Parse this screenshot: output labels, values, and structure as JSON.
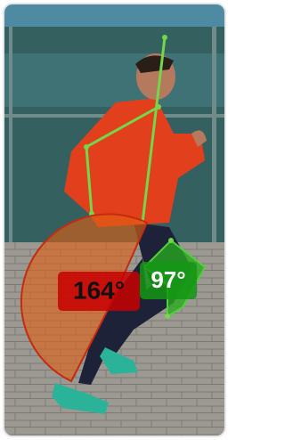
{
  "angles": [
    {
      "label": "164°"
    },
    {
      "label": "97°"
    }
  ]
}
